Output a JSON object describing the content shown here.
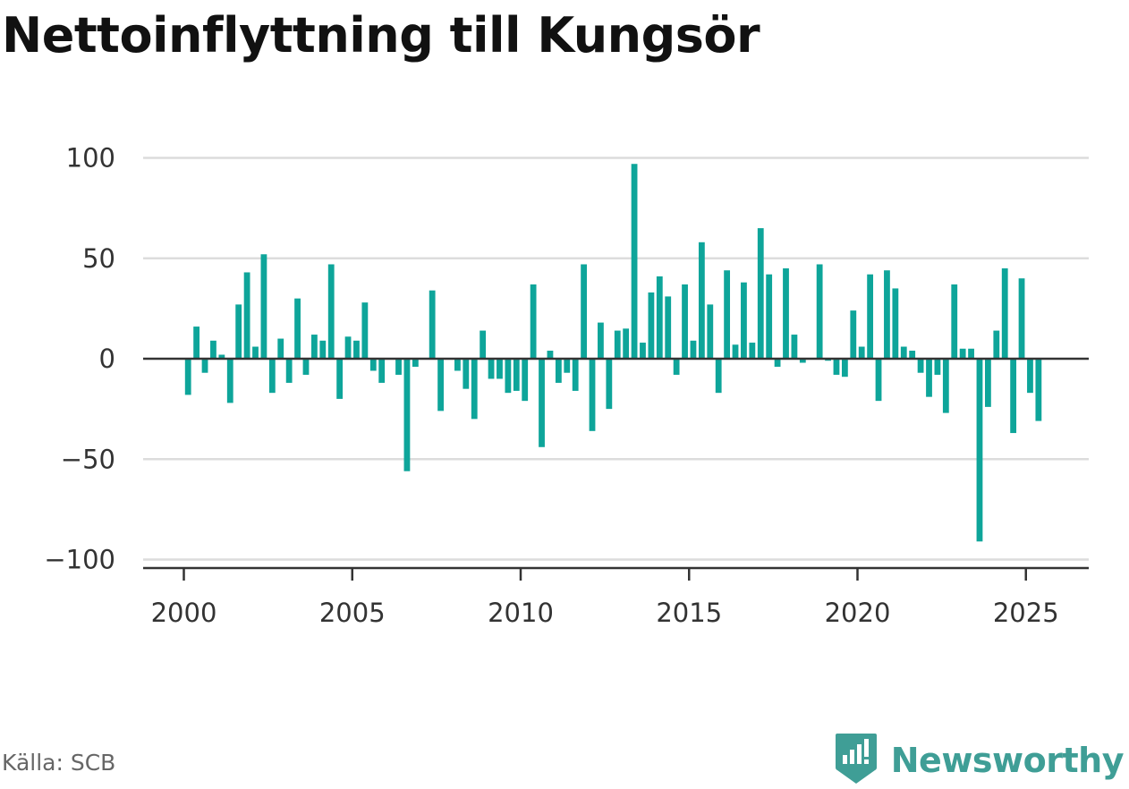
{
  "title": "Nettoinflyttning till Kungsör",
  "source": "Källa: SCB",
  "brand": {
    "name": "Newsworthy",
    "icon": "newsworthy-logo-icon",
    "color": "#3f9e96"
  },
  "chart_data": {
    "type": "bar",
    "title": "Nettoinflyttning till Kungsör",
    "xlabel": "",
    "ylabel": "",
    "ylim": [
      -105,
      105
    ],
    "xlim": [
      1999.6,
      2026.8
    ],
    "grid": true,
    "bar_color": "#0ea59a",
    "y_ticks": [
      {
        "value": 100,
        "label": "100"
      },
      {
        "value": 50,
        "label": "50"
      },
      {
        "value": 0,
        "label": "0"
      },
      {
        "value": -50,
        "label": "−50"
      },
      {
        "value": -100,
        "label": "−100"
      }
    ],
    "x_ticks": [
      {
        "value": 2000,
        "label": "2000"
      },
      {
        "value": 2005,
        "label": "2005"
      },
      {
        "value": 2010,
        "label": "2010"
      },
      {
        "value": 2015,
        "label": "2015"
      },
      {
        "value": 2020,
        "label": "2020"
      },
      {
        "value": 2025,
        "label": "2025"
      }
    ],
    "x": [
      2000.125,
      2000.375,
      2000.625,
      2000.875,
      2001.125,
      2001.375,
      2001.625,
      2001.875,
      2002.125,
      2002.375,
      2002.625,
      2002.875,
      2003.125,
      2003.375,
      2003.625,
      2003.875,
      2004.125,
      2004.375,
      2004.625,
      2004.875,
      2005.125,
      2005.375,
      2005.625,
      2005.875,
      2006.125,
      2006.375,
      2006.625,
      2006.875,
      2007.125,
      2007.375,
      2007.625,
      2007.875,
      2008.125,
      2008.375,
      2008.625,
      2008.875,
      2009.125,
      2009.375,
      2009.625,
      2009.875,
      2010.125,
      2010.375,
      2010.625,
      2010.875,
      2011.125,
      2011.375,
      2011.625,
      2011.875,
      2012.125,
      2012.375,
      2012.625,
      2012.875,
      2013.125,
      2013.375,
      2013.625,
      2013.875,
      2014.125,
      2014.375,
      2014.625,
      2014.875,
      2015.125,
      2015.375,
      2015.625,
      2015.875,
      2016.125,
      2016.375,
      2016.625,
      2016.875,
      2017.125,
      2017.375,
      2017.625,
      2017.875,
      2018.125,
      2018.375,
      2018.625,
      2018.875,
      2019.125,
      2019.375,
      2019.625,
      2019.875,
      2020.125,
      2020.375,
      2020.625,
      2020.875,
      2021.125,
      2021.375,
      2021.625,
      2021.875,
      2022.125,
      2022.375,
      2022.625,
      2022.875,
      2023.125,
      2023.375,
      2023.625,
      2023.875,
      2024.125,
      2024.375,
      2024.625,
      2024.875,
      2025.125,
      2025.375
    ],
    "values": [
      -18,
      16,
      -7,
      9,
      2,
      -22,
      27,
      43,
      6,
      52,
      -17,
      10,
      -12,
      30,
      -8,
      12,
      9,
      47,
      -20,
      11,
      9,
      28,
      -6,
      -12,
      0,
      -8,
      -56,
      -4,
      0,
      34,
      -26,
      0,
      -6,
      -15,
      -30,
      14,
      -10,
      -10,
      -17,
      -16,
      -21,
      37,
      -44,
      4,
      -12,
      -7,
      -16,
      47,
      -36,
      18,
      -25,
      14,
      15,
      97,
      8,
      33,
      41,
      31,
      -8,
      37,
      9,
      58,
      27,
      -17,
      44,
      7,
      38,
      8,
      65,
      42,
      -4,
      45,
      12,
      -2,
      0,
      47,
      -1,
      -8,
      -9,
      24,
      6,
      42,
      -21,
      44,
      35,
      6,
      4,
      -7,
      -19,
      -8,
      -27,
      37,
      5,
      5,
      -91,
      -24,
      14,
      45,
      -37,
      40,
      -17,
      -31
    ]
  }
}
